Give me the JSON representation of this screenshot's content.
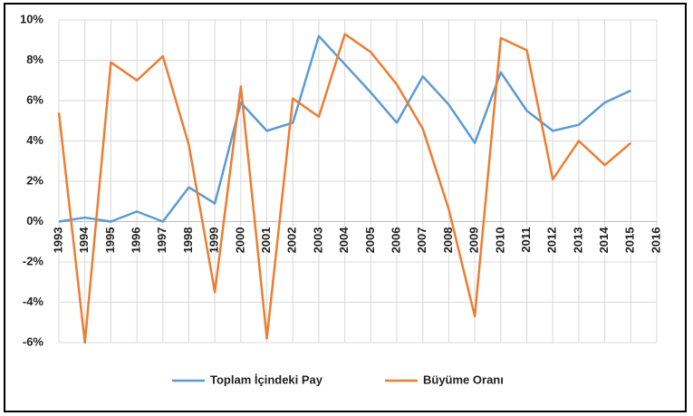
{
  "chart_data": {
    "type": "line",
    "categories": [
      "1993",
      "1994",
      "1995",
      "1996",
      "1997",
      "1998",
      "1999",
      "2000",
      "2001",
      "2002",
      "2003",
      "2004",
      "2005",
      "2006",
      "2007",
      "2008",
      "2009",
      "2010",
      "2011",
      "2012",
      "2013",
      "2014",
      "2015",
      "2016"
    ],
    "series": [
      {
        "name": "Toplam İçindeki Pay",
        "color": "#5b9bd5",
        "values": [
          0.0,
          0.2,
          0.0,
          0.5,
          0.0,
          1.7,
          0.9,
          5.9,
          4.5,
          4.9,
          9.2,
          7.8,
          6.4,
          4.9,
          7.2,
          5.8,
          3.9,
          7.4,
          5.5,
          4.5,
          4.8,
          5.9,
          6.5,
          null
        ]
      },
      {
        "name": "Büyüme Oranı",
        "color": "#ed7d31",
        "values": [
          5.4,
          -6.0,
          7.9,
          7.0,
          8.2,
          3.8,
          -3.5,
          6.7,
          -5.8,
          6.1,
          5.2,
          9.3,
          8.4,
          6.8,
          4.6,
          0.6,
          -4.7,
          9.1,
          8.5,
          2.1,
          4.0,
          2.8,
          3.9,
          null
        ]
      }
    ],
    "ylim": [
      -6,
      10
    ],
    "yticks": [
      {
        "value": -6,
        "label": "-6%"
      },
      {
        "value": -4,
        "label": "-4%"
      },
      {
        "value": -2,
        "label": "-2%"
      },
      {
        "value": 0,
        "label": "0%"
      },
      {
        "value": 2,
        "label": "2%"
      },
      {
        "value": 4,
        "label": "4%"
      },
      {
        "value": 6,
        "label": "6%"
      },
      {
        "value": 8,
        "label": "8%"
      },
      {
        "value": 10,
        "label": "10%"
      }
    ],
    "grid": true,
    "legend": "bottom"
  }
}
